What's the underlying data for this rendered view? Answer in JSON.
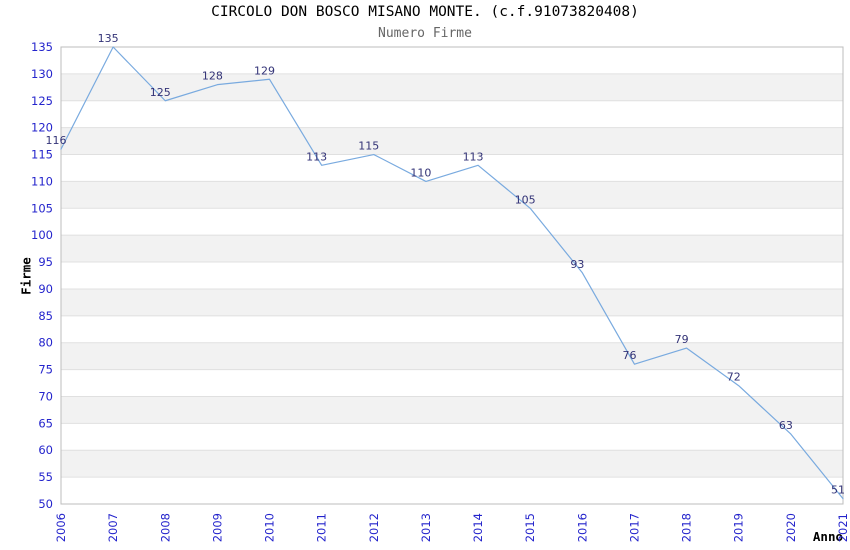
{
  "header": {
    "title": "CIRCOLO DON BOSCO MISANO MONTE. (c.f.91073820408)",
    "subtitle": "Numero Firme"
  },
  "chart_data": {
    "type": "line",
    "title": "CIRCOLO DON BOSCO MISANO MONTE. (c.f.91073820408)",
    "subtitle": "Numero Firme",
    "xlabel": "Anno",
    "ylabel": "Firme",
    "categories": [
      "2006",
      "2007",
      "2008",
      "2009",
      "2010",
      "2011",
      "2012",
      "2013",
      "2014",
      "2015",
      "2016",
      "2017",
      "2018",
      "2019",
      "2020",
      "2021"
    ],
    "series": [
      {
        "name": "Numero Firme",
        "values": [
          116,
          135,
          125,
          128,
          129,
          113,
          115,
          110,
          113,
          105,
          93,
          76,
          79,
          72,
          63,
          51
        ]
      }
    ],
    "ylim": [
      50,
      135
    ],
    "ytick_step": 5,
    "grid": "horizontal-bands",
    "legend_position": "none",
    "data_labels_visible": true,
    "colors": {
      "line": "#79AADF",
      "data_label": "#333377",
      "tick_label": "#2424CC",
      "band_alt": "#F2F2F2",
      "band_main": "#FFFFFF",
      "gridline": "#E0E0E0",
      "plot_border": "#BDBDBD",
      "title": "#000000",
      "subtitle": "#666666",
      "axis_title": "#000000",
      "background": "#FFFFFF"
    }
  }
}
